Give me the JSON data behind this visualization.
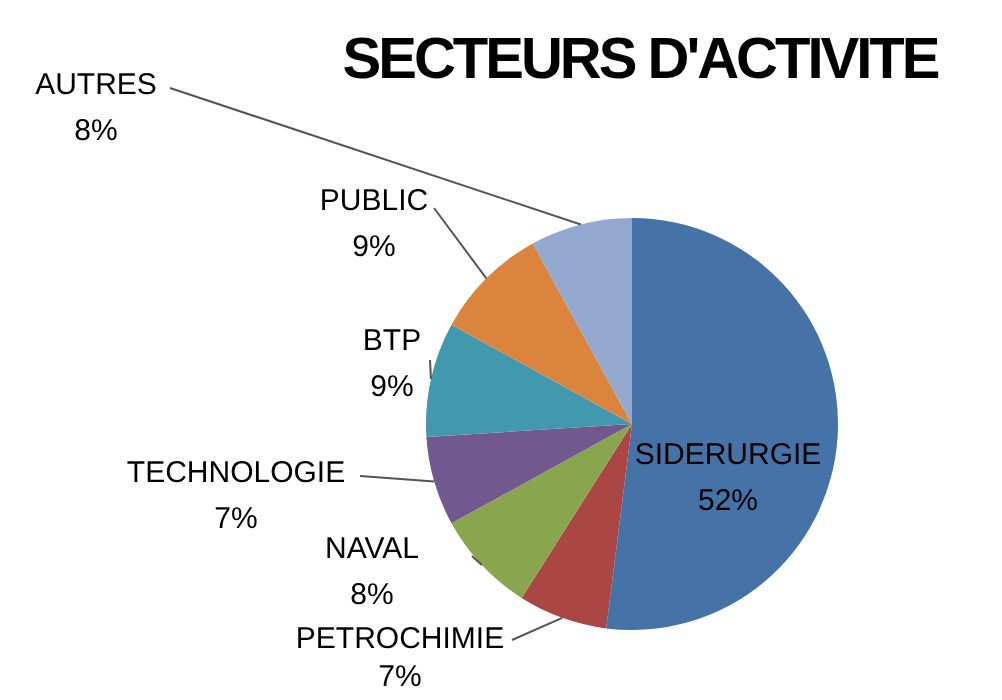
{
  "chart_data": {
    "type": "pie",
    "title": "SECTEURS D'ACTIVITE",
    "categories": [
      "SIDERURGIE",
      "PETROCHIMIE",
      "NAVAL",
      "TECHNOLOGIE",
      "BTP",
      "PUBLIC",
      "AUTRES"
    ],
    "values": [
      52,
      7,
      8,
      7,
      9,
      9,
      8
    ],
    "value_labels": [
      "52%",
      "7%",
      "8%",
      "7%",
      "9%",
      "9%",
      "8%"
    ],
    "colors": [
      "#4572a7",
      "#aa4643",
      "#89a54e",
      "#71588f",
      "#4198af",
      "#db843d",
      "#93a9cf"
    ],
    "legend": false
  }
}
